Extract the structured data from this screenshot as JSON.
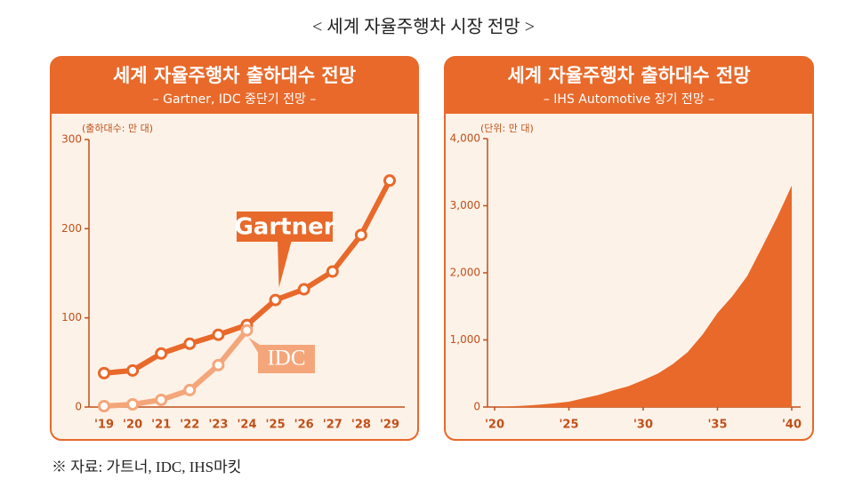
{
  "title": "< 세계 자율주행차 시장 전망 >",
  "source": "※ 자료: 가트너, IDC, IHS마킷",
  "chart_data": [
    {
      "type": "line",
      "title": "세계 자율주행차 출하대수 전망",
      "subtitle": "– Gartner, IDC 중단기 전망 –",
      "unit_label": "(출하대수: 만 대)",
      "categories": [
        "'19",
        "'20",
        "'21",
        "'22",
        "'23",
        "'24",
        "'25",
        "'26",
        "'27",
        "'28",
        "'29"
      ],
      "series": [
        {
          "name": "Gartner",
          "color": "#e8692a",
          "values": [
            38,
            41,
            60,
            71,
            81,
            92,
            120,
            132,
            152,
            193,
            254
          ]
        },
        {
          "name": "IDC",
          "color": "#f4a67a",
          "values": [
            1,
            3,
            8,
            19,
            47,
            86,
            null,
            null,
            null,
            null,
            null
          ]
        }
      ],
      "ylim": [
        0,
        300
      ],
      "yticks": [
        0,
        100,
        200,
        300
      ]
    },
    {
      "type": "area",
      "title": "세계 자율주행차 출하대수 전망",
      "subtitle": "– IHS Automotive 장기 전망 –",
      "unit_label": "(단위: 만 대)",
      "x": [
        2020,
        2021,
        2022,
        2023,
        2024,
        2025,
        2026,
        2027,
        2028,
        2029,
        2030,
        2031,
        2032,
        2033,
        2034,
        2035,
        2036,
        2037,
        2038,
        2039,
        2040
      ],
      "values": [
        0,
        10,
        20,
        35,
        55,
        80,
        130,
        180,
        250,
        310,
        400,
        500,
        640,
        820,
        1080,
        1400,
        1650,
        1950,
        2380,
        2820,
        3300
      ],
      "color": "#e8692a",
      "xlim": [
        2020,
        2040
      ],
      "xticks": [
        {
          "value": 2020,
          "label": "'20"
        },
        {
          "value": 2025,
          "label": "'25"
        },
        {
          "value": 2030,
          "label": "'30"
        },
        {
          "value": 2035,
          "label": "'35"
        },
        {
          "value": 2040,
          "label": "'40"
        }
      ],
      "ylim": [
        0,
        4000
      ],
      "yticks": [
        0,
        {
          "value": 1000,
          "label": "1,000"
        },
        {
          "value": 2000,
          "label": "2,000"
        },
        {
          "value": 3000,
          "label": "3,000"
        },
        {
          "value": 4000,
          "label": "4,000"
        }
      ]
    }
  ]
}
